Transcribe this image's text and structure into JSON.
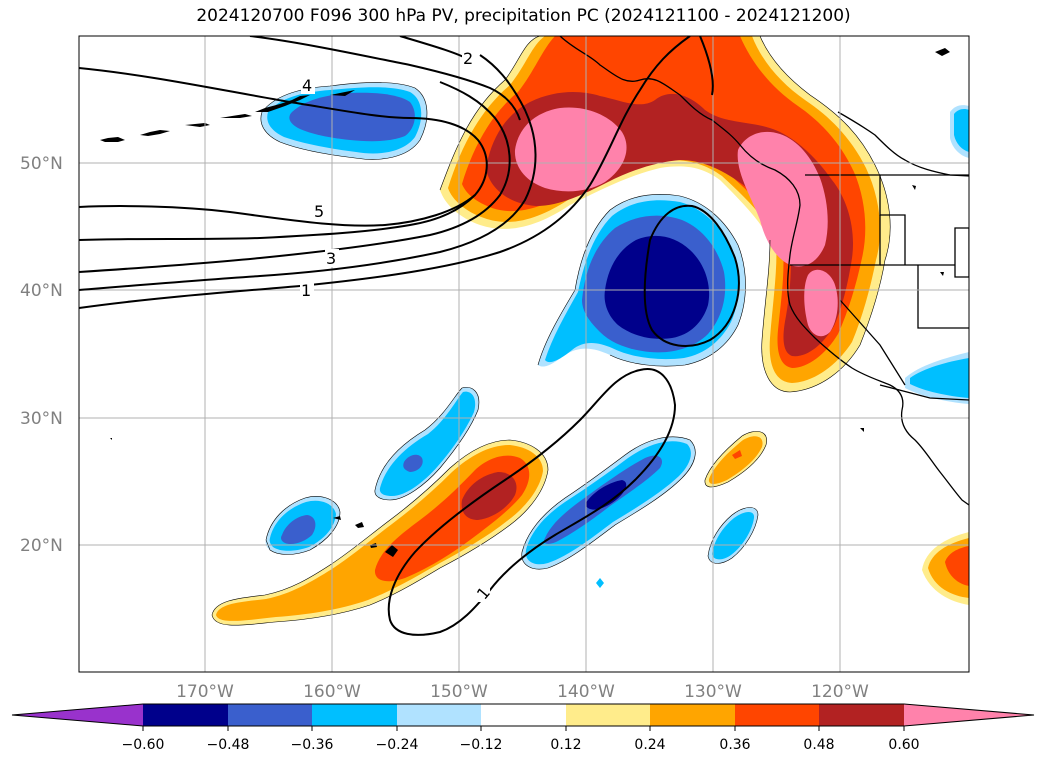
{
  "title": "2024120700 F096 300 hPa PV, precipitation PC (2024121100 - 2024121200)",
  "lat_labels": [
    "50°N",
    "40°N",
    "30°N",
    "20°N"
  ],
  "lon_labels": [
    "170°W",
    "160°W",
    "150°W",
    "140°W",
    "130°W",
    "120°W"
  ],
  "contour_labels": [
    "2",
    "4",
    "5",
    "3",
    "1",
    "1"
  ],
  "colorbar": {
    "ticks": [
      "−0.60",
      "−0.48",
      "−0.36",
      "−0.24",
      "−0.12",
      "0.12",
      "0.24",
      "0.36",
      "0.48",
      "0.60"
    ],
    "colors": [
      "#9932cc",
      "#00008b",
      "#3a5fcd",
      "#00bfff",
      "#b0e2ff",
      "#ffffff",
      "#ffec8b",
      "#ffa500",
      "#ff4500",
      "#b22222",
      "#ff82ab"
    ]
  },
  "colors": {
    "neg_extreme": "#9932cc",
    "neg_strong": "#00008b",
    "neg_mod": "#3a5fcd",
    "neg_weak": "#00bfff",
    "neg_faint": "#b0e2ff",
    "pos_faint": "#ffec8b",
    "pos_weak": "#ffa500",
    "pos_mod": "#ff4500",
    "pos_strong": "#b22222",
    "pos_extreme": "#ff82ab"
  }
}
